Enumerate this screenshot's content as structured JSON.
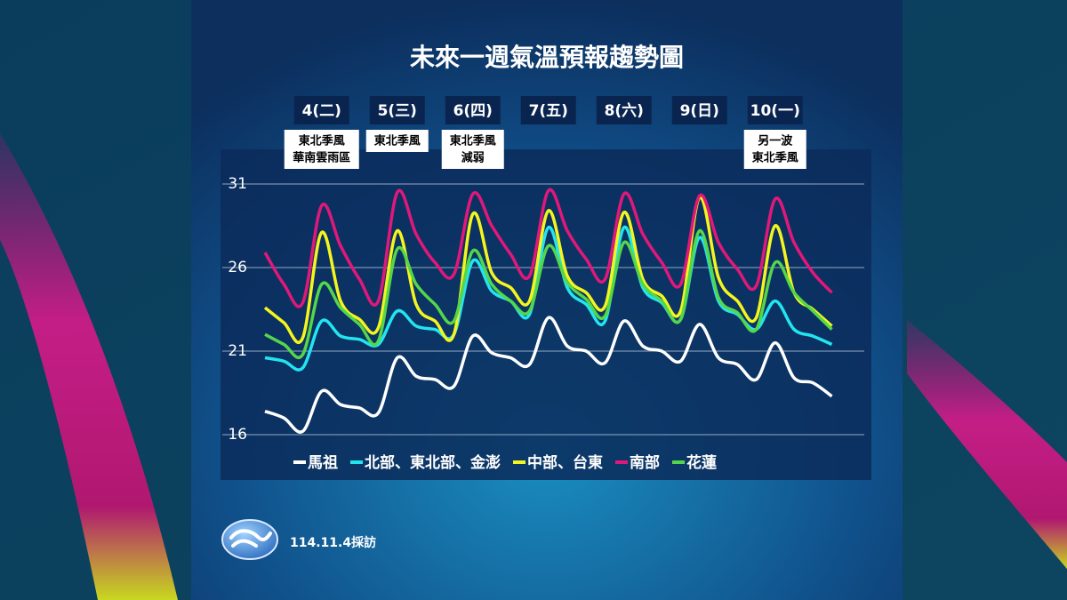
{
  "chart_data": {
    "type": "line",
    "title": "未來一週氣溫預報趨勢圖",
    "categories": [
      null,
      null,
      null,
      "4(二)",
      null,
      null,
      null,
      "5(三)",
      null,
      null,
      null,
      "6(四)",
      null,
      null,
      null,
      "7(五)",
      null,
      null,
      null,
      "8(六)",
      null,
      null,
      null,
      "9(日)",
      null,
      null,
      null,
      "10(一)",
      null,
      null,
      null
    ],
    "annotations": [
      [
        "東北季風",
        "華南雲雨區"
      ],
      [
        "東北季風"
      ],
      [
        "東北季風",
        "減弱"
      ],
      null,
      null,
      null,
      [
        "另一波",
        "東北季風"
      ]
    ],
    "ylim": [
      16,
      31
    ],
    "yticks": [
      16,
      21,
      26,
      31
    ],
    "grid": true,
    "series": [
      {
        "name": "馬祖",
        "color": "#ffffff",
        "values": [
          17.4,
          17.0,
          16.2,
          18.6,
          17.8,
          17.6,
          17.3,
          20.6,
          19.5,
          19.3,
          18.9,
          21.9,
          20.9,
          20.6,
          20.2,
          23.0,
          21.3,
          21.0,
          20.3,
          22.8,
          21.3,
          21.0,
          20.4,
          22.6,
          20.6,
          20.2,
          19.3,
          21.5,
          19.4,
          19.1,
          18.3
        ]
      },
      {
        "name": "北部、東北部、金澎",
        "color": "#22e5f0",
        "values": [
          20.6,
          20.4,
          20.0,
          22.8,
          21.9,
          21.7,
          21.4,
          23.4,
          22.5,
          22.3,
          22.0,
          26.4,
          24.6,
          24.0,
          23.2,
          28.4,
          24.8,
          23.8,
          22.8,
          28.4,
          24.8,
          23.9,
          22.9,
          27.8,
          24.0,
          23.2,
          22.3,
          24.0,
          22.3,
          21.9,
          21.4
        ]
      },
      {
        "name": "中部、台東",
        "color": "#f5f51e",
        "values": [
          23.6,
          22.7,
          21.8,
          28.1,
          24.0,
          22.9,
          22.4,
          28.2,
          23.8,
          22.8,
          22.0,
          29.2,
          25.7,
          24.8,
          24.0,
          29.4,
          25.5,
          24.5,
          23.7,
          29.3,
          25.3,
          24.3,
          23.4,
          30.2,
          25.4,
          24.0,
          23.0,
          28.5,
          24.5,
          23.5,
          22.5
        ]
      },
      {
        "name": "南部",
        "color": "#e0187a",
        "values": [
          26.9,
          25.0,
          23.9,
          29.7,
          27.3,
          25.3,
          24.0,
          30.5,
          28.0,
          26.3,
          25.6,
          30.4,
          28.5,
          26.8,
          25.5,
          30.6,
          28.2,
          26.5,
          25.3,
          30.4,
          28.0,
          26.3,
          25.0,
          30.3,
          27.5,
          25.9,
          24.9,
          30.1,
          27.5,
          25.7,
          24.5
        ]
      },
      {
        "name": "花蓮",
        "color": "#55d64a",
        "values": [
          22.0,
          21.4,
          20.8,
          25.0,
          23.6,
          22.6,
          21.6,
          27.1,
          25.0,
          23.8,
          22.8,
          27.0,
          25.0,
          24.0,
          23.4,
          27.3,
          25.1,
          24.1,
          23.1,
          27.5,
          25.0,
          24.0,
          22.9,
          28.2,
          24.2,
          23.3,
          22.3,
          26.3,
          24.5,
          23.4,
          22.3
        ]
      }
    ],
    "footer": "114.11.4採訪"
  }
}
